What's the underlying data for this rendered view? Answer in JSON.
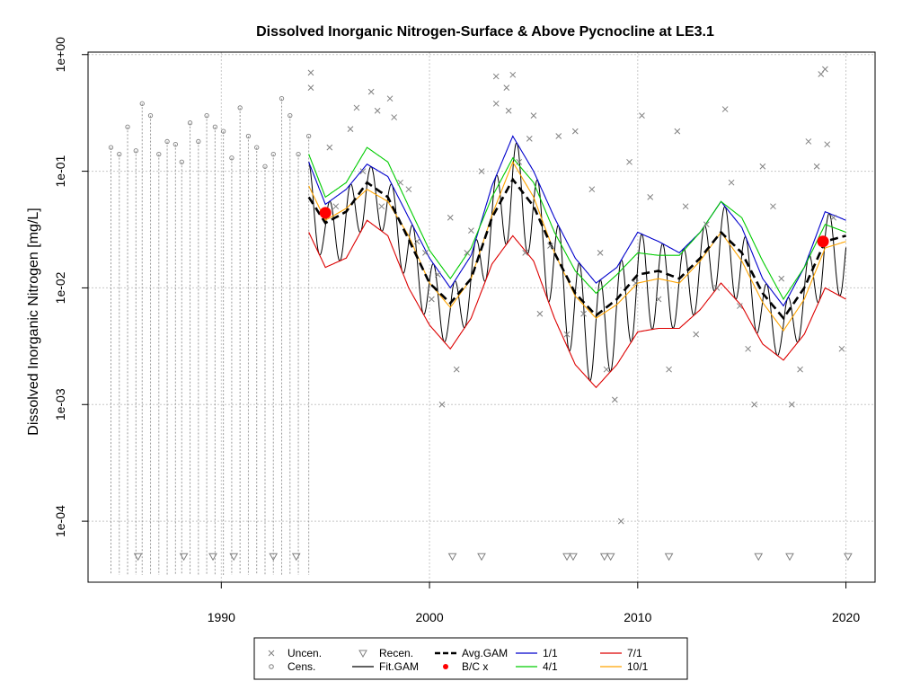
{
  "chart_data": {
    "type": "line",
    "title": "Dissolved Inorganic Nitrogen-Surface & Above Pycnocline at LE3.1",
    "xlabel": "",
    "ylabel": "Dissolved Inorganic Nitrogen [mg/L]",
    "xlim": [
      1983.6,
      2021.4
    ],
    "ylim": [
      3e-05,
      1.05
    ],
    "log_y": true,
    "grid": true,
    "x_ticks": [
      1990,
      2000,
      2010,
      2020
    ],
    "x_tick_labels": [
      "1990",
      "2000",
      "2010",
      "2020"
    ],
    "y_ticks": [
      0.0001,
      0.001,
      0.01,
      0.1,
      1
    ],
    "y_tick_labels": [
      "1e-04",
      "1e-03",
      "1e-02",
      "1e-01",
      "1e+00"
    ],
    "legend": {
      "position": "bottom",
      "entries": [
        {
          "label": "Uncen.",
          "symbol": "x",
          "color": "#808080"
        },
        {
          "label": "Cens.",
          "symbol": "circle",
          "color": "#808080"
        },
        {
          "label": "Recen.",
          "symbol": "triangle-down",
          "color": "#808080"
        },
        {
          "label": "Fit.GAM",
          "symbol": "line",
          "color": "#000000"
        },
        {
          "label": "Avg.GAM",
          "symbol": "dashed-line",
          "color": "#000000"
        },
        {
          "label": "B/C x",
          "symbol": "dot",
          "color": "#ff0000"
        },
        {
          "label": "1/1",
          "symbol": "line",
          "color": "#0000cc"
        },
        {
          "label": "4/1",
          "symbol": "line",
          "color": "#00cc00"
        },
        {
          "label": "7/1",
          "symbol": "line",
          "color": "#dd0000"
        },
        {
          "label": "10/1",
          "symbol": "line",
          "color": "#ffa500"
        }
      ]
    },
    "avg_gam": {
      "x": [
        1994.2,
        1995.0,
        1996.0,
        1997.0,
        1998.0,
        1999.0,
        2000.0,
        2001.0,
        2002.0,
        2003.0,
        2004.0,
        2005.0,
        2006.0,
        2007.0,
        2008.0,
        2009.0,
        2010.0,
        2011.0,
        2012.0,
        2013.0,
        2014.0,
        2015.0,
        2016.0,
        2017.0,
        2018.0,
        2019.0,
        2020.0
      ],
      "y": [
        0.06,
        0.036,
        0.045,
        0.08,
        0.06,
        0.026,
        0.011,
        0.0074,
        0.012,
        0.04,
        0.085,
        0.05,
        0.02,
        0.009,
        0.0058,
        0.008,
        0.013,
        0.014,
        0.012,
        0.018,
        0.03,
        0.02,
        0.009,
        0.0055,
        0.01,
        0.025,
        0.028
      ]
    },
    "series": [
      {
        "name": "1/1",
        "color": "#0000cc",
        "y": [
          0.12,
          0.052,
          0.07,
          0.115,
          0.09,
          0.04,
          0.018,
          0.01,
          0.019,
          0.075,
          0.2,
          0.1,
          0.04,
          0.018,
          0.011,
          0.015,
          0.03,
          0.025,
          0.02,
          0.03,
          0.055,
          0.033,
          0.012,
          0.007,
          0.015,
          0.045,
          0.038
        ]
      },
      {
        "name": "4/1",
        "color": "#00cc00",
        "y": [
          0.14,
          0.06,
          0.08,
          0.16,
          0.12,
          0.05,
          0.021,
          0.012,
          0.022,
          0.06,
          0.13,
          0.08,
          0.03,
          0.014,
          0.009,
          0.013,
          0.02,
          0.019,
          0.019,
          0.03,
          0.055,
          0.04,
          0.017,
          0.008,
          0.015,
          0.035,
          0.03
        ]
      },
      {
        "name": "7/1",
        "color": "#dd0000",
        "y": [
          0.03,
          0.015,
          0.018,
          0.038,
          0.028,
          0.01,
          0.0048,
          0.003,
          0.0055,
          0.016,
          0.028,
          0.017,
          0.0055,
          0.0022,
          0.0014,
          0.0022,
          0.0042,
          0.0045,
          0.0045,
          0.0065,
          0.011,
          0.007,
          0.0033,
          0.0024,
          0.004,
          0.01,
          0.008
        ]
      },
      {
        "name": "10/1",
        "color": "#ffa500",
        "y": [
          0.075,
          0.038,
          0.048,
          0.07,
          0.055,
          0.028,
          0.011,
          0.0068,
          0.012,
          0.042,
          0.12,
          0.06,
          0.02,
          0.0085,
          0.0055,
          0.0072,
          0.011,
          0.012,
          0.011,
          0.017,
          0.03,
          0.017,
          0.0075,
          0.0043,
          0.008,
          0.022,
          0.025
        ]
      }
    ],
    "fit_gam_note": "oscillating seasonal fit between 7/1 and 1/1 envelopes",
    "bc_points": [
      {
        "x": 1995.0,
        "y": 0.044
      },
      {
        "x": 2018.9,
        "y": 0.025
      }
    ],
    "uncensored_points": [
      {
        "x": 1994.3,
        "y": 0.7
      },
      {
        "x": 1994.3,
        "y": 0.52
      },
      {
        "x": 1995.2,
        "y": 0.16
      },
      {
        "x": 1995.5,
        "y": 0.05
      },
      {
        "x": 1996.2,
        "y": 0.23
      },
      {
        "x": 1996.5,
        "y": 0.35
      },
      {
        "x": 1996.8,
        "y": 0.1
      },
      {
        "x": 1997.2,
        "y": 0.48
      },
      {
        "x": 1997.5,
        "y": 0.33
      },
      {
        "x": 1997.7,
        "y": 0.05
      },
      {
        "x": 1998.1,
        "y": 0.42
      },
      {
        "x": 1998.3,
        "y": 0.29
      },
      {
        "x": 1998.6,
        "y": 0.08
      },
      {
        "x": 1999.0,
        "y": 0.07
      },
      {
        "x": 1999.4,
        "y": 0.025
      },
      {
        "x": 1999.8,
        "y": 0.02
      },
      {
        "x": 2000.1,
        "y": 0.008
      },
      {
        "x": 2000.4,
        "y": 0.013
      },
      {
        "x": 2000.6,
        "y": 0.001
      },
      {
        "x": 2001.0,
        "y": 0.04
      },
      {
        "x": 2001.3,
        "y": 0.002
      },
      {
        "x": 2001.8,
        "y": 0.02
      },
      {
        "x": 2002.0,
        "y": 0.031
      },
      {
        "x": 2002.5,
        "y": 0.1
      },
      {
        "x": 2003.2,
        "y": 0.65
      },
      {
        "x": 2003.2,
        "y": 0.38
      },
      {
        "x": 2003.7,
        "y": 0.52
      },
      {
        "x": 2003.8,
        "y": 0.33
      },
      {
        "x": 2004.0,
        "y": 0.67
      },
      {
        "x": 2004.3,
        "y": 0.12
      },
      {
        "x": 2004.6,
        "y": 0.02
      },
      {
        "x": 2004.8,
        "y": 0.19
      },
      {
        "x": 2005.0,
        "y": 0.3
      },
      {
        "x": 2005.3,
        "y": 0.006
      },
      {
        "x": 2005.8,
        "y": 0.023
      },
      {
        "x": 2006.2,
        "y": 0.2
      },
      {
        "x": 2006.6,
        "y": 0.004
      },
      {
        "x": 2007.0,
        "y": 0.22
      },
      {
        "x": 2007.4,
        "y": 0.006
      },
      {
        "x": 2007.8,
        "y": 0.07
      },
      {
        "x": 2008.2,
        "y": 0.02
      },
      {
        "x": 2008.5,
        "y": 0.002
      },
      {
        "x": 2008.9,
        "y": 0.0011
      },
      {
        "x": 2009.2,
        "y": 0.0001
      },
      {
        "x": 2009.6,
        "y": 0.12
      },
      {
        "x": 2009.9,
        "y": 0.011
      },
      {
        "x": 2010.2,
        "y": 0.3
      },
      {
        "x": 2010.6,
        "y": 0.06
      },
      {
        "x": 2011.0,
        "y": 0.008
      },
      {
        "x": 2011.5,
        "y": 0.002
      },
      {
        "x": 2011.9,
        "y": 0.22
      },
      {
        "x": 2012.3,
        "y": 0.05
      },
      {
        "x": 2012.8,
        "y": 0.004
      },
      {
        "x": 2013.3,
        "y": 0.035
      },
      {
        "x": 2013.8,
        "y": 0.01
      },
      {
        "x": 2014.2,
        "y": 0.34
      },
      {
        "x": 2014.5,
        "y": 0.08
      },
      {
        "x": 2014.9,
        "y": 0.007
      },
      {
        "x": 2015.3,
        "y": 0.003
      },
      {
        "x": 2015.6,
        "y": 0.001
      },
      {
        "x": 2016.0,
        "y": 0.11
      },
      {
        "x": 2016.5,
        "y": 0.05
      },
      {
        "x": 2016.9,
        "y": 0.012
      },
      {
        "x": 2017.4,
        "y": 0.001
      },
      {
        "x": 2017.8,
        "y": 0.002
      },
      {
        "x": 2018.2,
        "y": 0.18
      },
      {
        "x": 2018.6,
        "y": 0.11
      },
      {
        "x": 2018.8,
        "y": 0.68
      },
      {
        "x": 2019.0,
        "y": 0.75
      },
      {
        "x": 2019.1,
        "y": 0.17
      },
      {
        "x": 2019.4,
        "y": 0.04
      },
      {
        "x": 2019.8,
        "y": 0.003
      }
    ],
    "censored_points": [
      {
        "x": 1984.7,
        "y": 0.16
      },
      {
        "x": 1985.1,
        "y": 0.14
      },
      {
        "x": 1985.5,
        "y": 0.24
      },
      {
        "x": 1985.9,
        "y": 0.15
      },
      {
        "x": 1986.2,
        "y": 0.38
      },
      {
        "x": 1986.6,
        "y": 0.3
      },
      {
        "x": 1987.0,
        "y": 0.14
      },
      {
        "x": 1987.4,
        "y": 0.18
      },
      {
        "x": 1987.8,
        "y": 0.17
      },
      {
        "x": 1988.1,
        "y": 0.12
      },
      {
        "x": 1988.5,
        "y": 0.26
      },
      {
        "x": 1988.9,
        "y": 0.18
      },
      {
        "x": 1989.3,
        "y": 0.3
      },
      {
        "x": 1989.7,
        "y": 0.24
      },
      {
        "x": 1990.1,
        "y": 0.22
      },
      {
        "x": 1990.5,
        "y": 0.13
      },
      {
        "x": 1990.9,
        "y": 0.35
      },
      {
        "x": 1991.3,
        "y": 0.2
      },
      {
        "x": 1991.7,
        "y": 0.16
      },
      {
        "x": 1992.1,
        "y": 0.11
      },
      {
        "x": 1992.5,
        "y": 0.14
      },
      {
        "x": 1992.9,
        "y": 0.42
      },
      {
        "x": 1993.3,
        "y": 0.3
      },
      {
        "x": 1993.7,
        "y": 0.14
      },
      {
        "x": 1994.2,
        "y": 0.2
      }
    ],
    "recensored_points": [
      {
        "x": 1986.0,
        "y": 5e-05
      },
      {
        "x": 1988.2,
        "y": 5e-05
      },
      {
        "x": 1989.6,
        "y": 5e-05
      },
      {
        "x": 1990.6,
        "y": 5e-05
      },
      {
        "x": 1992.5,
        "y": 5e-05
      },
      {
        "x": 1993.6,
        "y": 5e-05
      },
      {
        "x": 2001.1,
        "y": 5e-05
      },
      {
        "x": 2002.5,
        "y": 5e-05
      },
      {
        "x": 2006.6,
        "y": 5e-05
      },
      {
        "x": 2006.9,
        "y": 5e-05
      },
      {
        "x": 2008.4,
        "y": 5e-05
      },
      {
        "x": 2008.7,
        "y": 5e-05
      },
      {
        "x": 2011.5,
        "y": 5e-05
      },
      {
        "x": 2015.8,
        "y": 5e-05
      },
      {
        "x": 2017.3,
        "y": 5e-05
      },
      {
        "x": 2020.1,
        "y": 5e-05
      }
    ]
  }
}
